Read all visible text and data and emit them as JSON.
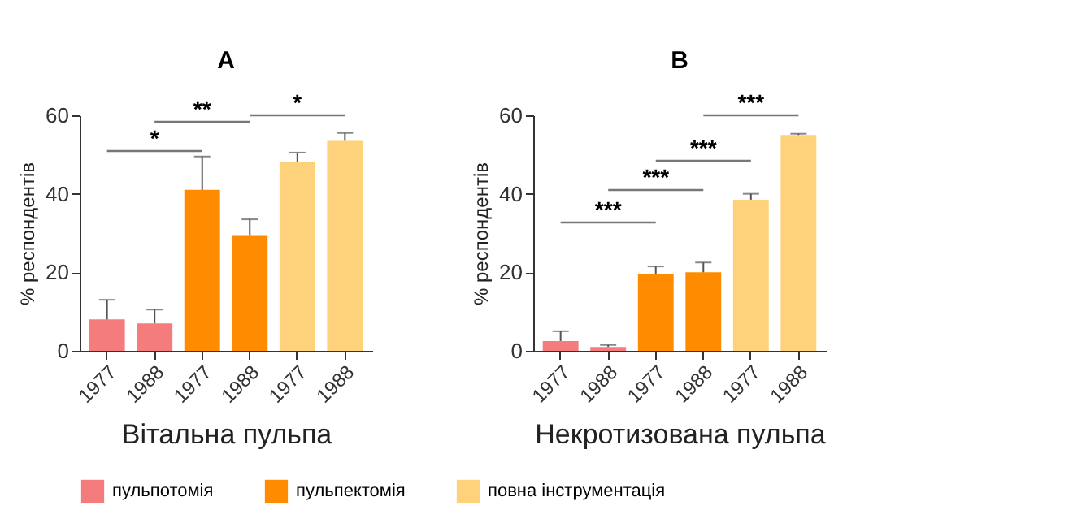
{
  "chart_data": [
    {
      "type": "bar",
      "title": "A",
      "xlabel": "Вітальна пульпа",
      "ylabel": "% респондентів",
      "categories": [
        "1977",
        "1988",
        "1977",
        "1988",
        "1977",
        "1988"
      ],
      "ylim": [
        0,
        60
      ],
      "yticks": [
        0,
        20,
        40,
        60
      ],
      "grid": false,
      "legend": "bottom",
      "annotations": [
        "*",
        "**",
        "*"
      ],
      "series": [
        {
          "name": "пульпотомія",
          "color": "#f47c7c",
          "values": [
            8,
            7,
            null,
            null,
            null,
            null
          ],
          "errors": [
            [
              8,
              13
            ],
            [
              7,
              10.5
            ],
            null,
            null,
            null,
            null
          ]
        },
        {
          "name": "пульпектомія",
          "color": "#ff8c00",
          "values": [
            null,
            null,
            41,
            29.5,
            null,
            null
          ],
          "errors": [
            null,
            null,
            [
              41,
              49.5
            ],
            [
              29.5,
              33.5
            ],
            null,
            null
          ]
        },
        {
          "name": "повна інструментація",
          "color": "#fdd27a",
          "values": [
            null,
            null,
            null,
            null,
            48,
            53.5
          ],
          "errors": [
            null,
            null,
            null,
            null,
            [
              48,
              50.5
            ],
            [
              53.5,
              55.5
            ]
          ]
        }
      ]
    },
    {
      "type": "bar",
      "title": "B",
      "xlabel": "Некротизована пульпа",
      "ylabel": "% респондентів",
      "categories": [
        "1977",
        "1988",
        "1977",
        "1988",
        "1977",
        "1988"
      ],
      "ylim": [
        0,
        60
      ],
      "yticks": [
        0,
        20,
        40,
        60
      ],
      "grid": false,
      "annotations": [
        "***",
        "***",
        "***",
        "***"
      ],
      "series": [
        {
          "name": "пульпотомія",
          "color": "#f47c7c",
          "values": [
            2.5,
            1,
            null,
            null,
            null,
            null
          ],
          "errors": [
            [
              2.5,
              5
            ],
            [
              1,
              1.5
            ],
            null,
            null,
            null,
            null
          ]
        },
        {
          "name": "пульпектомія",
          "color": "#ff8c00",
          "values": [
            null,
            null,
            19.5,
            20,
            null,
            null
          ],
          "errors": [
            null,
            null,
            [
              19.5,
              21.5
            ],
            [
              20,
              22.5
            ],
            null,
            null
          ]
        },
        {
          "name": "повна інструментація",
          "color": "#fdd27a",
          "values": [
            null,
            null,
            null,
            null,
            38.5,
            55
          ],
          "errors": [
            null,
            null,
            null,
            null,
            [
              38.5,
              40
            ],
            [
              55,
              55.3
            ]
          ]
        }
      ]
    }
  ]
}
